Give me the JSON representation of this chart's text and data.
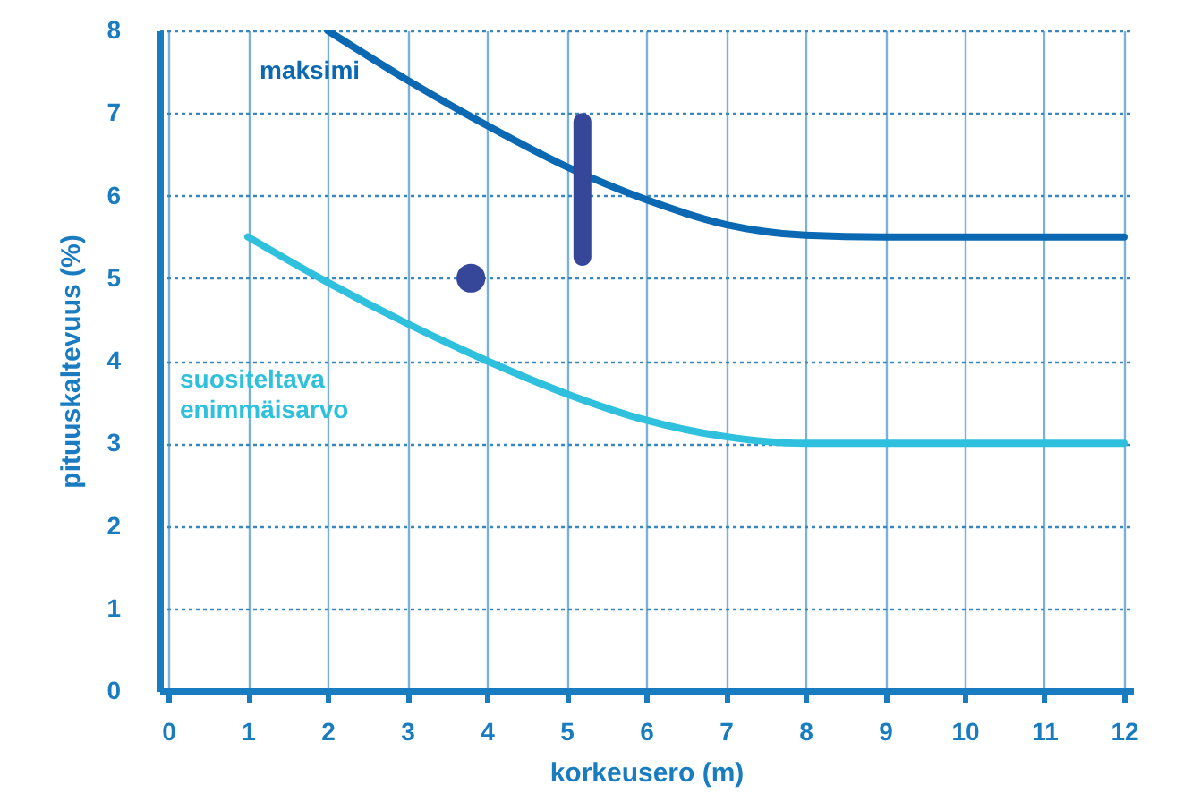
{
  "chart_data": {
    "type": "line",
    "xlabel": "korkeusero (m)",
    "ylabel": "pituuskaltevuus (%)",
    "xlim": [
      0,
      12
    ],
    "ylim": [
      0,
      8
    ],
    "xticks": [
      0,
      1,
      2,
      3,
      4,
      5,
      6,
      7,
      8,
      9,
      10,
      11,
      12
    ],
    "yticks": [
      0,
      1,
      2,
      3,
      4,
      5,
      6,
      7,
      8
    ],
    "grid": true,
    "series": [
      {
        "name": "maksimi",
        "color": "#0b69b3",
        "x": [
          2,
          3,
          4,
          5,
          6,
          7,
          8,
          9,
          10,
          11,
          12
        ],
        "values": [
          8,
          7.4,
          6.85,
          6.35,
          5.95,
          5.65,
          5.52,
          5.5,
          5.5,
          5.5,
          5.5
        ]
      },
      {
        "name": "suositeltava enimmäisarvo",
        "color": "#2ec0dc",
        "x": [
          1,
          2,
          3,
          4,
          5,
          6,
          7,
          8,
          9,
          10,
          11,
          12
        ],
        "values": [
          5.5,
          4.95,
          4.45,
          4.0,
          3.6,
          3.28,
          3.08,
          3.0,
          3.0,
          3.0,
          3.0,
          3.0
        ]
      },
      {
        "type": "scatter",
        "color": "#36479a",
        "marker": "circle",
        "x": [
          3.8
        ],
        "values": [
          5.0
        ]
      },
      {
        "type": "bar",
        "color": "#36479a",
        "x": [
          5.2
        ],
        "base": [
          5.15
        ],
        "values": [
          1.85
        ]
      }
    ]
  }
}
